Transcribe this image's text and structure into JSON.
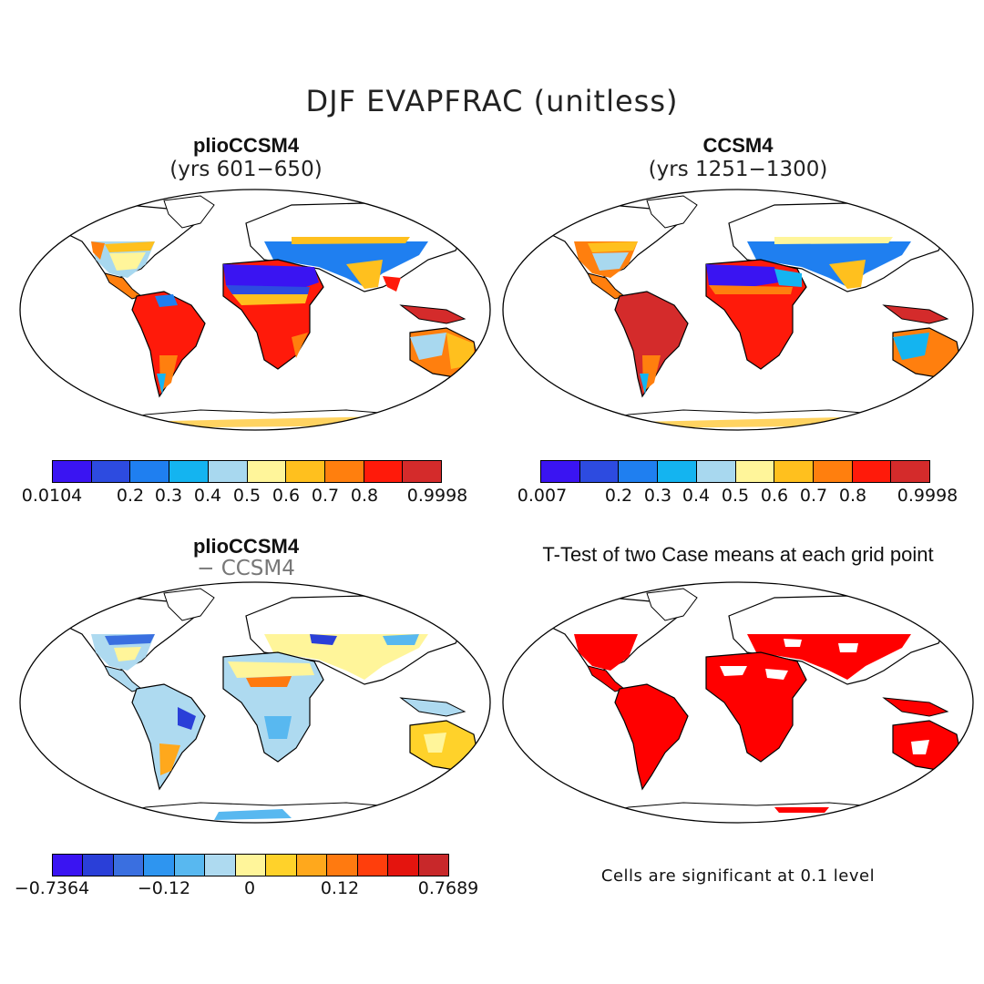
{
  "figure": {
    "title": "DJF EVAPFRAC (unitless)"
  },
  "panels": {
    "top_left": {
      "title": "plioCCSM4",
      "subtitle": "(yrs 601−650)",
      "colorbar": {
        "colors": [
          "#3a14f2",
          "#2d4be0",
          "#1f7ff0",
          "#14b4f0",
          "#a8d8ef",
          "#fff59a",
          "#ffc01e",
          "#ff7f0e",
          "#ff1a0a",
          "#d42b2b"
        ],
        "ticks": [
          "0.0104",
          "0.2",
          "0.3",
          "0.4",
          "0.5",
          "0.6",
          "0.7",
          "0.8",
          "0.9998"
        ]
      }
    },
    "top_right": {
      "title": "CCSM4",
      "subtitle": "(yrs 1251−1300)",
      "colorbar": {
        "colors": [
          "#3a14f2",
          "#2d4be0",
          "#1f7ff0",
          "#14b4f0",
          "#a8d8ef",
          "#fff59a",
          "#ffc01e",
          "#ff7f0e",
          "#ff1a0a",
          "#d42b2b"
        ],
        "ticks": [
          "0.007",
          "0.2",
          "0.3",
          "0.4",
          "0.5",
          "0.6",
          "0.7",
          "0.8",
          "0.9998"
        ]
      }
    },
    "bottom_left": {
      "title": "plioCCSM4",
      "subtitle": "− CCSM4",
      "colorbar": {
        "colors": [
          "#3a14f2",
          "#2a3fd8",
          "#3a6fe0",
          "#2e95f0",
          "#58b8f0",
          "#aedaf0",
          "#fff59a",
          "#ffd22a",
          "#ffa81c",
          "#ff7a10",
          "#ff3e0c",
          "#e4140e",
          "#c8282a"
        ],
        "ticks": [
          "−0.7364",
          "−0.12",
          "0",
          "0.12",
          "0.7689"
        ]
      }
    },
    "bottom_right": {
      "title": "T-Test of two Case means at each grid point",
      "note": "Cells are significant at 0.1 level",
      "significant_color": "#ff0000"
    }
  }
}
